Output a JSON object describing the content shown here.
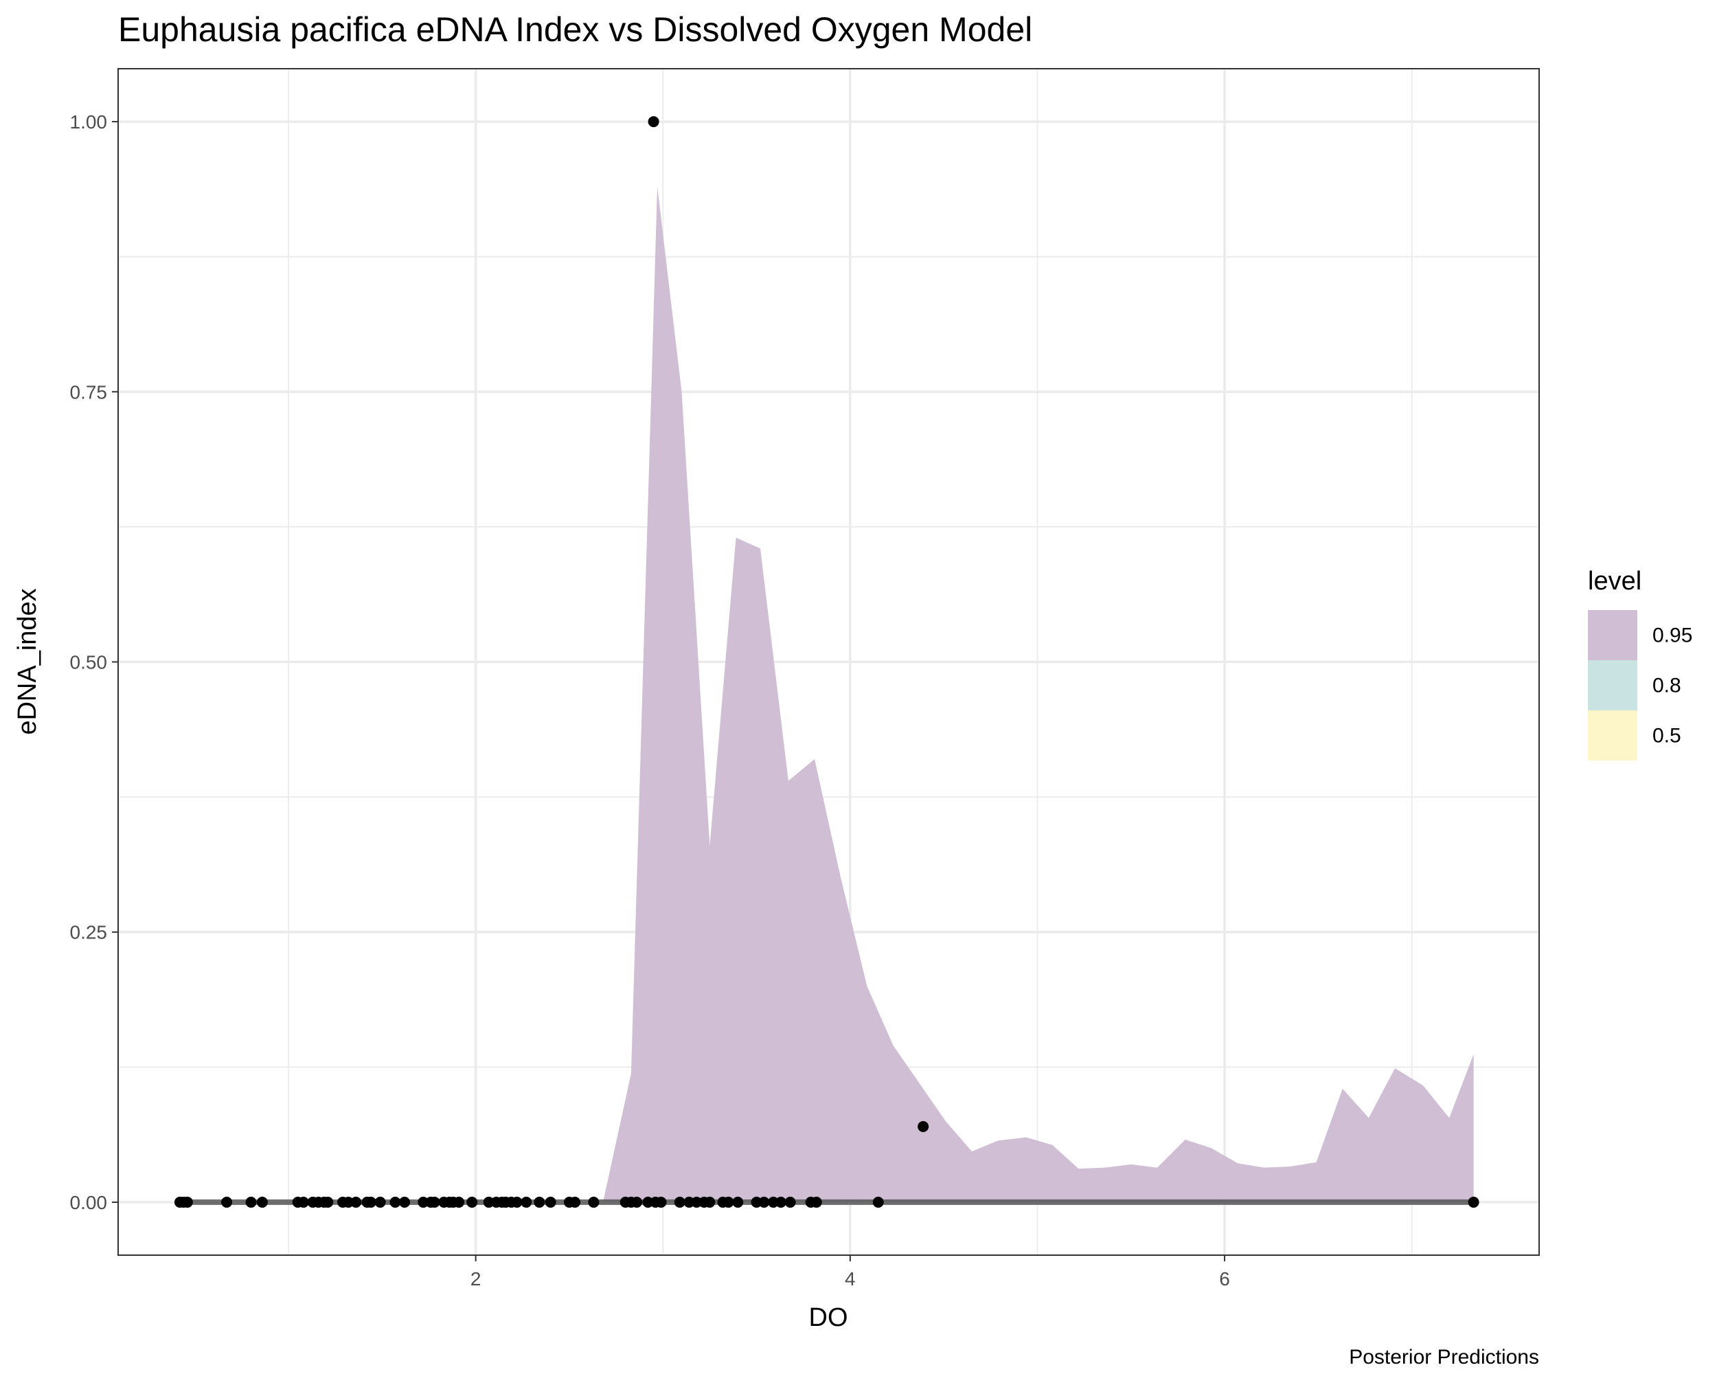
{
  "chart_data": {
    "type": "ribbon-scatter",
    "title": "Euphausia pacifica eDNA Index vs Dissolved Oxygen Model",
    "x_label": "DO",
    "y_label": "eDNA_index",
    "caption": "Posterior Predictions",
    "xlim": [
      0.09,
      7.68
    ],
    "ylim": [
      -0.049,
      1.049
    ],
    "xticks": [
      2,
      4,
      6
    ],
    "x_minor_ticks": [
      1,
      3,
      5,
      7
    ],
    "yticks": [
      {
        "value": 0,
        "label": "0.00"
      },
      {
        "value": 0.25,
        "label": "0.25"
      },
      {
        "value": 0.5,
        "label": "0.50"
      },
      {
        "value": 0.75,
        "label": "0.75"
      },
      {
        "value": 1,
        "label": "1.00"
      }
    ],
    "y_minor_ticks": [
      0.125,
      0.375,
      0.625,
      0.875
    ],
    "grid": true,
    "legend": {
      "title": "level",
      "position": "right",
      "entries": [
        {
          "name": "0.95",
          "color": "#d0bed5"
        },
        {
          "name": "0.8",
          "color": "#c9e2e2"
        },
        {
          "name": "0.5",
          "color": "#fdf6c9"
        }
      ]
    },
    "ribbon": {
      "color": "#d0bed5",
      "x": [
        2.68,
        2.83,
        2.97,
        3.1,
        3.25,
        3.39,
        3.52,
        3.67,
        3.81,
        3.95,
        4.09,
        4.23,
        4.37,
        4.51,
        4.65,
        4.79,
        4.94,
        5.08,
        5.22,
        5.36,
        5.5,
        5.64,
        5.79,
        5.93,
        6.07,
        6.21,
        6.35,
        6.49,
        6.63,
        6.77,
        6.91,
        7.06,
        7.2,
        7.33
      ],
      "upper": [
        0,
        0.119,
        0.94,
        0.75,
        0.33,
        0.615,
        0.605,
        0.39,
        0.41,
        0.3,
        0.2,
        0.145,
        0.11,
        0.075,
        0.047,
        0.057,
        0.06,
        0.053,
        0.031,
        0.032,
        0.035,
        0.032,
        0.058,
        0.05,
        0.036,
        0.032,
        0.033,
        0.037,
        0.105,
        0.078,
        0.124,
        0.108,
        0.078,
        0.137
      ],
      "lower": [
        0,
        0,
        0,
        0,
        0,
        0,
        0,
        0,
        0,
        0,
        0,
        0,
        0,
        0,
        0,
        0,
        0,
        0,
        0,
        0,
        0,
        0,
        0,
        0,
        0,
        0,
        0,
        0,
        0,
        0,
        0,
        0,
        0,
        0
      ]
    },
    "median": {
      "color": "#555555",
      "x": [
        0.42,
        7.33
      ],
      "y": [
        0,
        0
      ]
    },
    "points": {
      "color": "#000000",
      "x": [
        0.42,
        0.44,
        0.46,
        0.67,
        0.8,
        0.86,
        1.05,
        1.08,
        1.13,
        1.16,
        1.19,
        1.21,
        1.29,
        1.32,
        1.36,
        1.42,
        1.44,
        1.49,
        1.57,
        1.62,
        1.72,
        1.76,
        1.78,
        1.83,
        1.86,
        1.88,
        1.91,
        1.98,
        2.07,
        2.11,
        2.14,
        2.16,
        2.19,
        2.22,
        2.27,
        2.34,
        2.4,
        2.5,
        2.53,
        2.63,
        2.8,
        2.83,
        2.86,
        2.92,
        2.96,
        2.99,
        3.09,
        3.14,
        3.18,
        3.22,
        3.25,
        3.32,
        3.35,
        3.4,
        3.5,
        3.54,
        3.59,
        3.63,
        3.68,
        3.79,
        3.82,
        4.15,
        7.33,
        2.95,
        4.39
      ],
      "y": [
        0,
        0,
        0,
        0,
        0,
        0,
        0,
        0,
        0,
        0,
        0,
        0,
        0,
        0,
        0,
        0,
        0,
        0,
        0,
        0,
        0,
        0,
        0,
        0,
        0,
        0,
        0,
        0,
        0,
        0,
        0,
        0,
        0,
        0,
        0,
        0,
        0,
        0,
        0,
        0,
        0,
        0,
        0,
        0,
        0,
        0,
        0,
        0,
        0,
        0,
        0,
        0,
        0,
        0,
        0,
        0,
        0,
        0,
        0,
        0,
        0,
        0,
        0,
        1.0,
        0.07
      ]
    }
  }
}
